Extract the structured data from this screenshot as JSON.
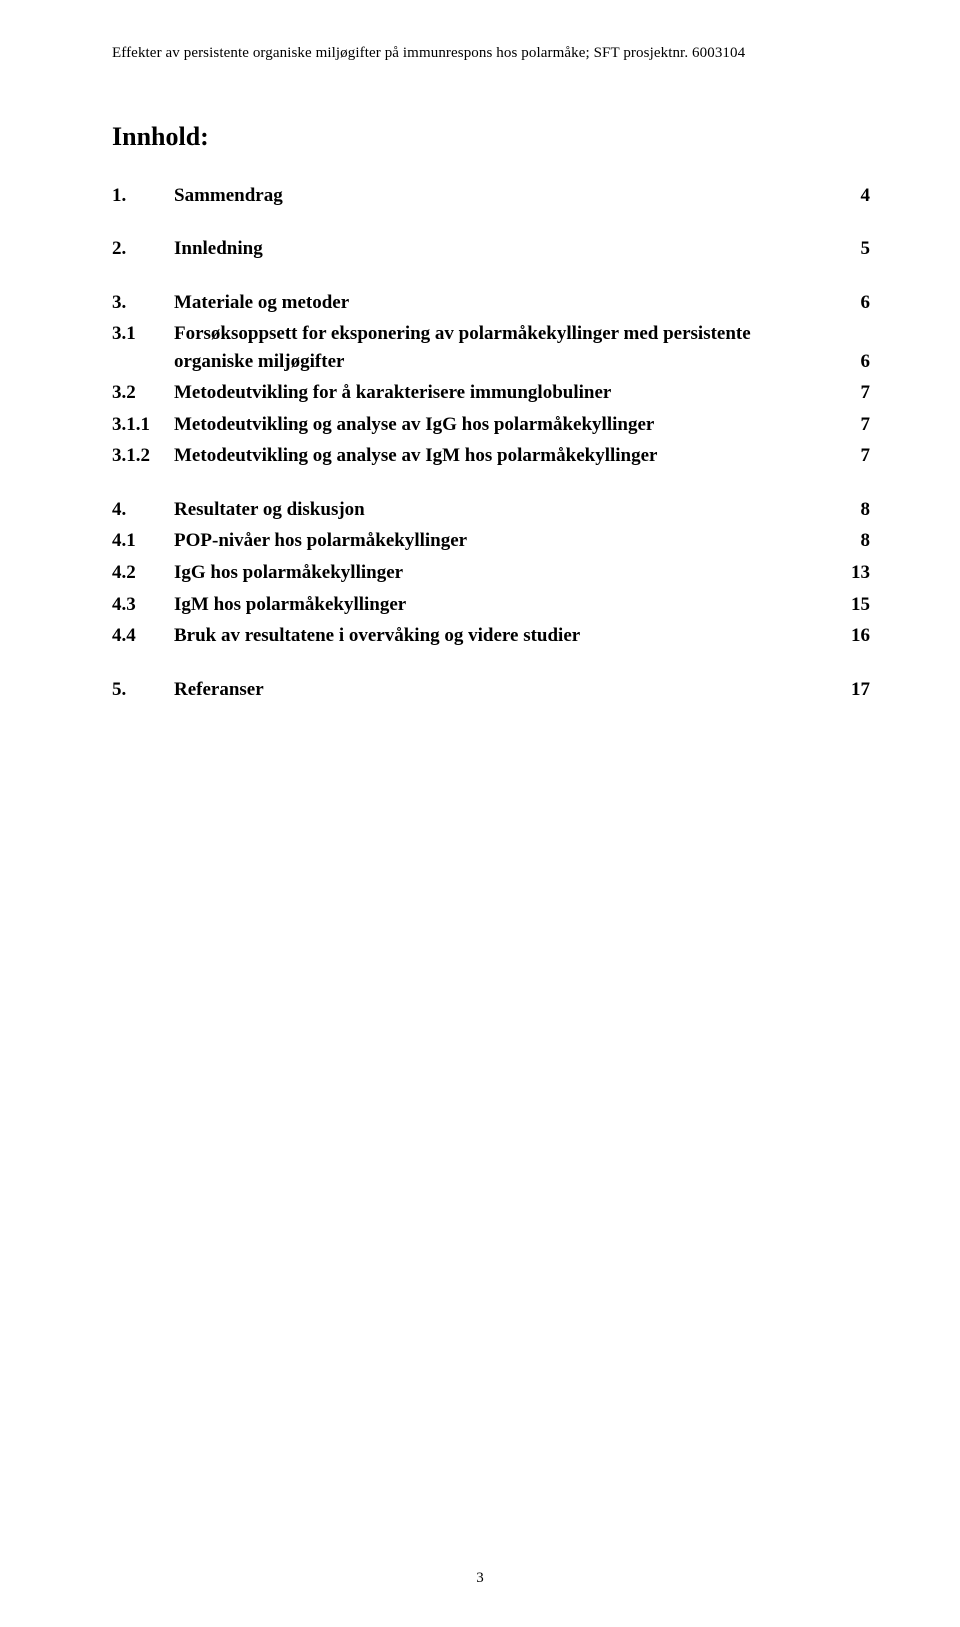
{
  "header": {
    "running": "Effekter av persistente organiske miljøgifter på immunrespons hos polarmåke; SFT prosjektnr. 6003104"
  },
  "toc": {
    "title": "Innhold:",
    "sections": [
      {
        "num": "1.",
        "text": "Sammendrag",
        "page": "4"
      },
      {
        "num": "2.",
        "text": "Innledning",
        "page": "5"
      },
      {
        "num": "3.",
        "text": "Materiale og metoder",
        "page": "6"
      },
      {
        "num": "3.1",
        "text": "Forsøksoppsett for eksponering av polarmåkekyllinger med persistente organiske miljøgifter",
        "page": "6"
      },
      {
        "num": "3.2",
        "text": "Metodeutvikling for å karakterisere immunglobuliner",
        "page": "7"
      },
      {
        "num": "3.1.1",
        "text": "Metodeutvikling og analyse av IgG hos polarmåkekyllinger",
        "page": "7"
      },
      {
        "num": "3.1.2",
        "text": "Metodeutvikling og analyse av IgM hos polarmåkekyllinger",
        "page": "7"
      },
      {
        "num": "4.",
        "text": "Resultater og diskusjon",
        "page": "8"
      },
      {
        "num": "4.1",
        "text": "POP-nivåer hos polarmåkekyllinger",
        "page": "8"
      },
      {
        "num": "4.2",
        "text": "IgG hos polarmåkekyllinger",
        "page": "13"
      },
      {
        "num": "4.3",
        "text": "IgM hos polarmåkekyllinger",
        "page": "15"
      },
      {
        "num": "4.4",
        "text": "Bruk av resultatene i overvåking og videre studier",
        "page": "16"
      },
      {
        "num": "5.",
        "text": "Referanser",
        "page": "17"
      }
    ]
  },
  "footer": {
    "page_number": "3"
  }
}
